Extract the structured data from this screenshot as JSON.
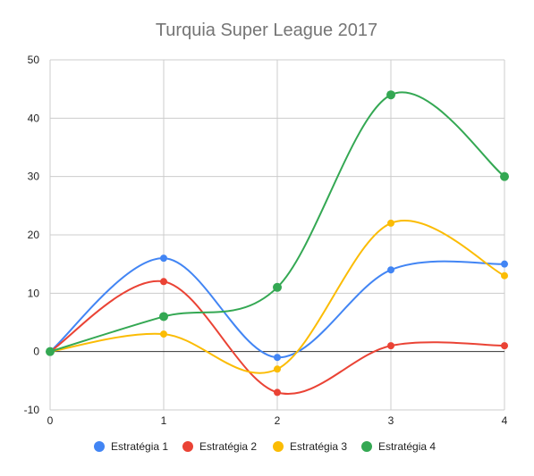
{
  "chart_data": {
    "type": "line",
    "title": "Turquia Super League 2017",
    "xlabel": "",
    "ylabel": "",
    "x": [
      0,
      1,
      2,
      3,
      4
    ],
    "x_tick_labels": [
      "0",
      "1",
      "2",
      "3",
      "4"
    ],
    "ylim": [
      -10,
      50
    ],
    "y_ticks": [
      -10,
      0,
      10,
      20,
      30,
      40,
      50
    ],
    "y_tick_labels": [
      "-10",
      "0",
      "10",
      "20",
      "30",
      "40",
      "50"
    ],
    "grid": true,
    "smooth": true,
    "legend_position": "bottom",
    "series": [
      {
        "name": "Estratégia 1",
        "color": "#4285f4",
        "values": [
          0,
          16,
          -1,
          14,
          15
        ]
      },
      {
        "name": "Estratégia 2",
        "color": "#ea4335",
        "values": [
          0,
          12,
          -7,
          1,
          1
        ]
      },
      {
        "name": "Estratégia 3",
        "color": "#fbbc04",
        "values": [
          0,
          3,
          -3,
          22,
          13
        ]
      },
      {
        "name": "Estratégia 4",
        "color": "#34a853",
        "values": [
          0,
          6,
          11,
          44,
          30
        ]
      }
    ]
  }
}
